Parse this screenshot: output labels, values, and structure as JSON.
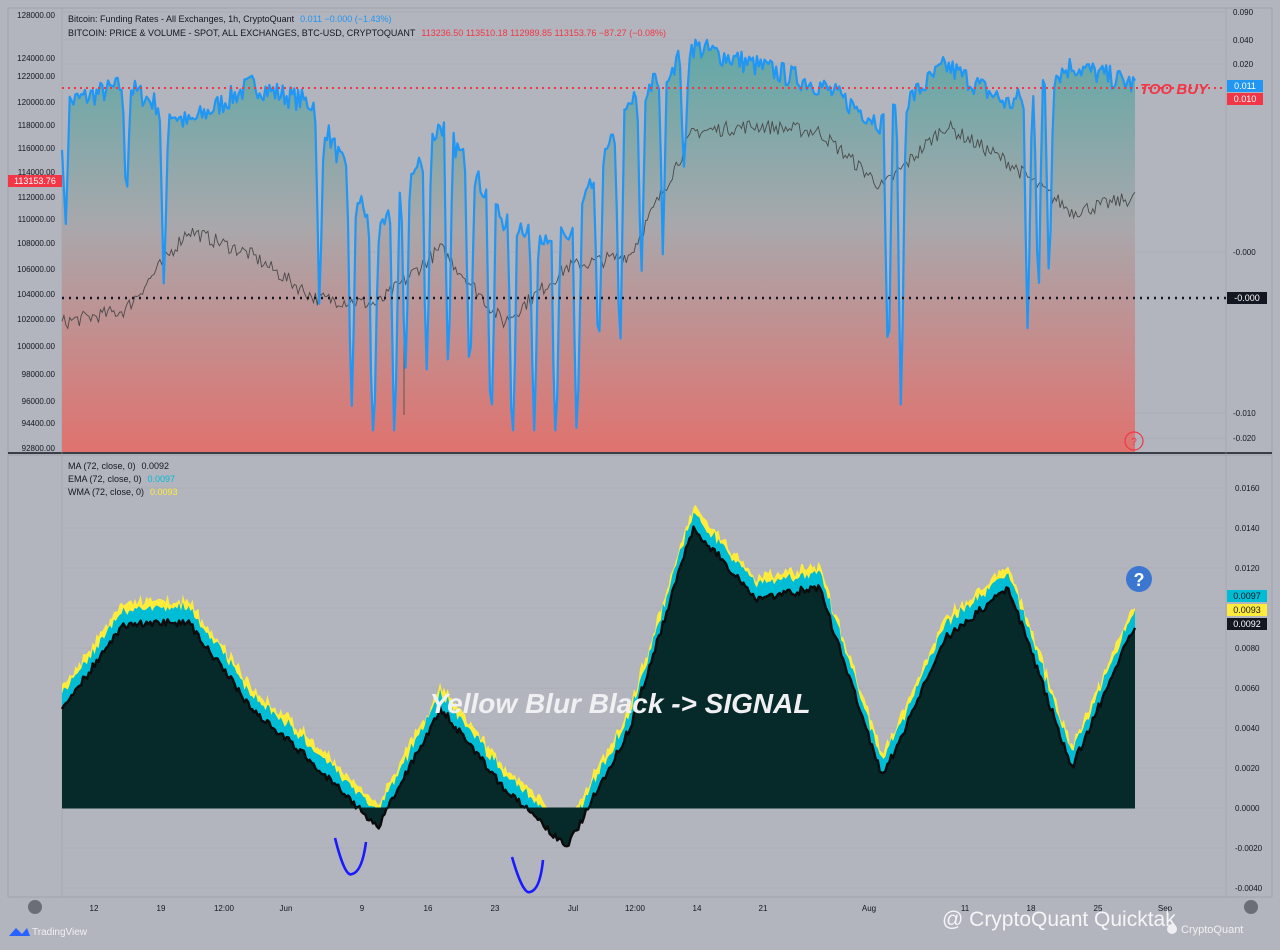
{
  "top_panel": {
    "legend": [
      {
        "label": "Bitcoin: Funding Rates - All Exchanges, 1h, CryptoQuant",
        "values": "0.011  −0.000 (−1.43%)",
        "value_color": "#2196f3"
      },
      {
        "label": "BITCOIN: PRICE & VOLUME - SPOT, ALL EXCHANGES, BTC-USD, CRYPTOQUANT",
        "values": "113236.50  113510.18  112989.85  113153.76  −87.27 (−0.08%)",
        "value_color": "#f23645"
      }
    ],
    "left_axis_ticks": [
      "128000.00",
      "124000.00",
      "122000.00",
      "120000.00",
      "118000.00",
      "116000.00",
      "114000.00",
      "112000.00",
      "110000.00",
      "108000.00",
      "106000.00",
      "104000.00",
      "102000.00",
      "100000.00",
      "98000.00",
      "96000.00",
      "94400.00",
      "92800.00"
    ],
    "right_axis_ticks": [
      "0.090",
      "0.040",
      "0.020",
      "-0.000",
      "-0.010",
      "-0.020"
    ],
    "price_tag": "113153.76",
    "funding_tag": "0.011",
    "threshold_tag": "0.010",
    "zero_tag": "-0.000",
    "too_buy_label": "TOO BUY"
  },
  "bottom_panel": {
    "legend": [
      {
        "label": "MA (72, close, 0)",
        "value": "0.0092",
        "color": "#131722"
      },
      {
        "label": "EMA (72, close, 0)",
        "value": "0.0097",
        "color": "#00bcd4"
      },
      {
        "label": "WMA (72, close, 0)",
        "value": "0.0093",
        "color": "#ffeb3b"
      }
    ],
    "right_axis_ticks": [
      "0.0160",
      "0.0140",
      "0.0120",
      "0.0100",
      "0.0080",
      "0.0060",
      "0.0040",
      "0.0020",
      "0.0000",
      "-0.0020",
      "-0.0040"
    ],
    "tags": {
      "ema": "0.0097",
      "wma": "0.0093",
      "ma": "0.0092"
    },
    "annotation": "Yellow Blur Black -> SIGNAL"
  },
  "x_axis_ticks": [
    "12",
    "19",
    "12:00",
    "Jun",
    "9",
    "16",
    "23",
    "Jul",
    "12:00",
    "14",
    "21",
    "Aug",
    "11",
    "18",
    "25",
    "Sep"
  ],
  "watermark": "@ CryptoQuant Quicktak",
  "footer_brand": "TradingView",
  "footer_brand2": "CryptoQuant",
  "colors": {
    "background": "#b2b5be",
    "funding": "#2196f3",
    "price": "#4a4a4a",
    "area_top": "#5fa8a6",
    "area_bottom": "#e0726e",
    "dark_area": "#062a2a",
    "ema": "#00bcd4",
    "wma": "#ffeb3b",
    "threshold": "#f23645",
    "signal_arc": "#1a1aff"
  },
  "chart_data": [
    {
      "type": "line",
      "series": [
        {
          "name": "Bitcoin: Funding Rates - All Exchanges, 1h, CryptoQuant",
          "axis": "right",
          "x": [
            "May 6",
            "May 12",
            "May 19",
            "May 26",
            "Jun 2",
            "Jun 9",
            "Jun 16",
            "Jun 23",
            "Jun 30",
            "Jul 7",
            "Jul 14",
            "Jul 21",
            "Jul 28",
            "Aug 4",
            "Aug 11",
            "Aug 18",
            "Aug 25",
            "Aug 28"
          ],
          "values": [
            0.01,
            0.011,
            0.009,
            0.011,
            0.01,
            0.003,
            0.009,
            0.004,
            0.003,
            0.01,
            0.013,
            0.012,
            0.011,
            0.009,
            0.012,
            0.01,
            0.012,
            0.011
          ]
        },
        {
          "name": "BITCOIN: PRICE & VOLUME - SPOT, ALL EXCHANGES, BTC-USD, CRYPTOQUANT",
          "axis": "left",
          "x": [
            "May 6",
            "May 12",
            "May 19",
            "May 26",
            "Jun 2",
            "Jun 9",
            "Jun 16",
            "Jun 23",
            "Jun 30",
            "Jul 7",
            "Jul 14",
            "Jul 21",
            "Jul 28",
            "Aug 4",
            "Aug 11",
            "Aug 18",
            "Aug 25",
            "Aug 28"
          ],
          "values": [
            103000,
            104000,
            110500,
            108500,
            105000,
            104500,
            109000,
            103000,
            107500,
            108500,
            118500,
            119000,
            118500,
            114000,
            119000,
            116000,
            112000,
            113153.76
          ]
        }
      ],
      "left_ylim": [
        92800,
        128000
      ],
      "right_ylim": [
        -0.02,
        0.09
      ],
      "reference_lines": [
        {
          "value": 0.01,
          "label": "TOO BUY"
        },
        {
          "value": -0.0
        }
      ]
    },
    {
      "type": "area",
      "series": [
        {
          "name": "MA (72, close, 0)",
          "x": [
            "May 6",
            "May 12",
            "May 19",
            "May 26",
            "Jun 2",
            "Jun 9",
            "Jun 16",
            "Jun 23",
            "Jun 30",
            "Jul 7",
            "Jul 14",
            "Jul 21",
            "Jul 28",
            "Aug 4",
            "Aug 11",
            "Aug 18",
            "Aug 25",
            "Aug 28"
          ],
          "values": [
            0.005,
            0.0092,
            0.0093,
            0.005,
            0.0022,
            -0.001,
            0.005,
            0.001,
            -0.002,
            0.004,
            0.014,
            0.0105,
            0.011,
            0.0015,
            0.0085,
            0.011,
            0.002,
            0.0092
          ]
        },
        {
          "name": "EMA (72, close, 0)",
          "last": 0.0097
        },
        {
          "name": "WMA (72, close, 0)",
          "last": 0.0093
        }
      ],
      "ylim": [
        -0.004,
        0.016
      ]
    }
  ]
}
